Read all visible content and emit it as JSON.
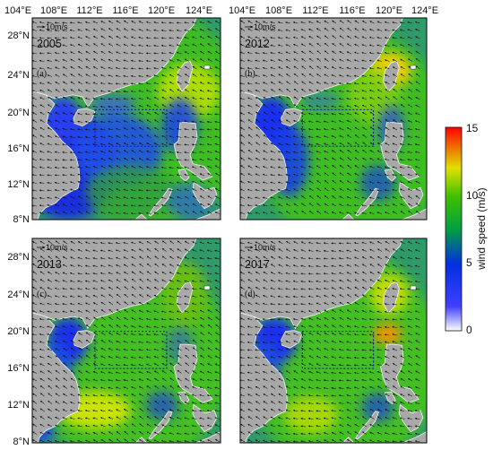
{
  "figure": {
    "lon_ticks": [
      "104°E",
      "108°E",
      "112°E",
      "116°E",
      "120°E",
      "124°E"
    ],
    "lat_ticks": [
      "28°N",
      "24°N",
      "20°N",
      "16°N",
      "12°N",
      "8°N"
    ],
    "scale_label": "10m/s",
    "study_box": {
      "lon": [
        111,
        119
      ],
      "lat": [
        16,
        20
      ]
    },
    "panels": [
      {
        "label": "(a)",
        "year": "2005"
      },
      {
        "label": "(b)",
        "year": "2012"
      },
      {
        "label": "(c)",
        "year": "2013"
      },
      {
        "label": "(d)",
        "year": "2017"
      }
    ]
  },
  "colorbar": {
    "label": "wind speed (m/s)",
    "ticks": [
      "15",
      "10",
      "5",
      "0"
    ],
    "range": [
      0,
      15
    ],
    "colors": [
      "#ffffff",
      "#0000ff",
      "#00b000",
      "#ffff00",
      "#ff0000"
    ]
  }
}
